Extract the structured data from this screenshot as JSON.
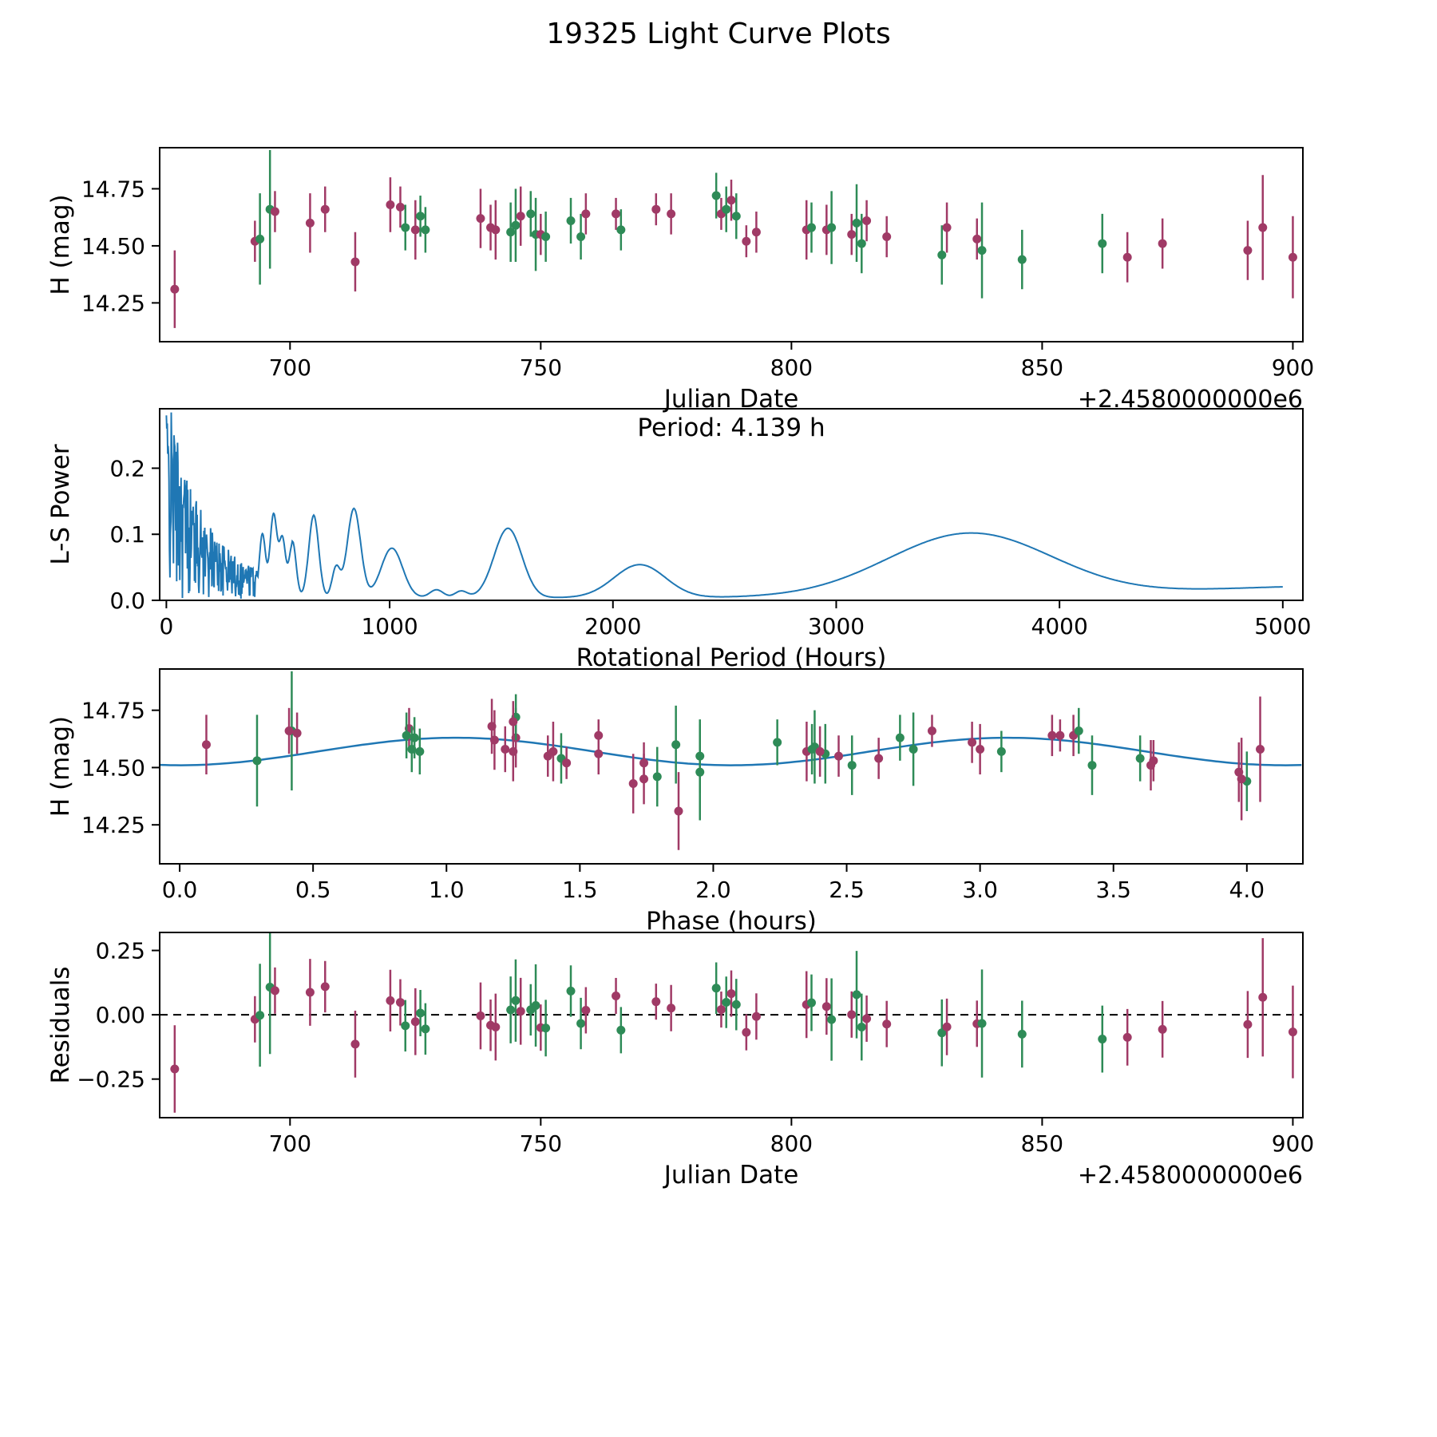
{
  "title": "19325 Light Curve Plots",
  "colors": {
    "line_blue": "#1f77b4",
    "series_purple": "#a03a66",
    "series_green": "#2e8b57",
    "background": "#ffffff",
    "text": "#000000"
  },
  "chart_data": [
    {
      "type": "scatter",
      "name": "light_curve",
      "xlabel": "Julian Date",
      "x_offset_text": "+2.4580000000e6",
      "ylabel": "H (mag)",
      "xlim": [
        674,
        902
      ],
      "ylim": [
        14.08,
        14.93
      ],
      "xticks": [
        700,
        750,
        800,
        850,
        900
      ],
      "xtick_labels": [
        "700",
        "750",
        "800",
        "850",
        "900"
      ],
      "yticks": [
        14.25,
        14.5,
        14.75
      ],
      "ytick_labels": [
        "14.25",
        "14.50",
        "14.75"
      ],
      "grid": false,
      "point_columns": [
        "julian_date_offset",
        "h_mag",
        "h_err",
        "series",
        "phase_hours"
      ],
      "series_colors": {
        "p": "#a03a66",
        "g": "#2e8b57"
      },
      "points": [
        [
          677,
          14.31,
          0.17,
          "p",
          1.87
        ],
        [
          693,
          14.52,
          0.09,
          "p",
          1.74
        ],
        [
          694,
          14.53,
          0.2,
          "g",
          0.29
        ],
        [
          696,
          14.66,
          0.26,
          "g",
          0.42
        ],
        [
          697,
          14.65,
          0.09,
          "p",
          0.44
        ],
        [
          704,
          14.6,
          0.13,
          "p",
          0.1
        ],
        [
          707,
          14.66,
          0.1,
          "p",
          0.41
        ],
        [
          713,
          14.43,
          0.13,
          "p",
          1.7
        ],
        [
          720,
          14.68,
          0.12,
          "p",
          1.17
        ],
        [
          722,
          14.67,
          0.09,
          "p",
          0.86
        ],
        [
          723,
          14.58,
          0.1,
          "g",
          0.87
        ],
        [
          725,
          14.57,
          0.13,
          "p",
          1.4
        ],
        [
          726,
          14.63,
          0.09,
          "g",
          0.88
        ],
        [
          727,
          14.57,
          0.1,
          "g",
          0.9
        ],
        [
          738,
          14.62,
          0.13,
          "p",
          1.18
        ],
        [
          740,
          14.58,
          0.1,
          "p",
          1.22
        ],
        [
          741,
          14.57,
          0.13,
          "p",
          1.25
        ],
        [
          744,
          14.56,
          0.13,
          "g",
          2.42
        ],
        [
          745,
          14.59,
          0.16,
          "g",
          2.38
        ],
        [
          746,
          14.63,
          0.13,
          "p",
          1.26
        ],
        [
          748,
          14.64,
          0.1,
          "g",
          0.85
        ],
        [
          749,
          14.55,
          0.16,
          "g",
          1.95
        ],
        [
          750,
          14.55,
          0.09,
          "p",
          1.38
        ],
        [
          751,
          14.54,
          0.11,
          "g",
          1.43
        ],
        [
          756,
          14.61,
          0.1,
          "g",
          2.24
        ],
        [
          758,
          14.54,
          0.1,
          "g",
          3.6
        ],
        [
          759,
          14.64,
          0.09,
          "p",
          3.27
        ],
        [
          765,
          14.64,
          0.07,
          "p",
          1.57
        ],
        [
          766,
          14.57,
          0.09,
          "g",
          3.08
        ],
        [
          773,
          14.66,
          0.07,
          "p",
          2.82
        ],
        [
          776,
          14.64,
          0.09,
          "p",
          3.35
        ],
        [
          785,
          14.72,
          0.1,
          "g",
          1.26
        ],
        [
          786,
          14.64,
          0.07,
          "p",
          3.3
        ],
        [
          787,
          14.66,
          0.1,
          "g",
          3.37
        ],
        [
          788,
          14.7,
          0.09,
          "p",
          1.25
        ],
        [
          789,
          14.63,
          0.1,
          "g",
          2.7
        ],
        [
          791,
          14.52,
          0.07,
          "p",
          1.45
        ],
        [
          793,
          14.56,
          0.09,
          "p",
          1.57
        ],
        [
          803,
          14.57,
          0.13,
          "p",
          2.35
        ],
        [
          804,
          14.58,
          0.11,
          "g",
          2.37
        ],
        [
          807,
          14.57,
          0.11,
          "p",
          2.4
        ],
        [
          808,
          14.58,
          0.16,
          "g",
          2.75
        ],
        [
          812,
          14.55,
          0.09,
          "p",
          2.47
        ],
        [
          813,
          14.6,
          0.17,
          "g",
          1.86
        ],
        [
          814,
          14.51,
          0.13,
          "g",
          2.52
        ],
        [
          815,
          14.61,
          0.09,
          "p",
          2.97
        ],
        [
          819,
          14.54,
          0.09,
          "p",
          2.62
        ],
        [
          830,
          14.46,
          0.13,
          "g",
          1.79
        ],
        [
          831,
          14.58,
          0.11,
          "p",
          3.0
        ],
        [
          837,
          14.53,
          0.09,
          "p",
          3.65
        ],
        [
          838,
          14.48,
          0.21,
          "g",
          1.95
        ],
        [
          846,
          14.44,
          0.13,
          "g",
          4.0
        ],
        [
          862,
          14.51,
          0.13,
          "g",
          3.42
        ],
        [
          867,
          14.45,
          0.11,
          "p",
          1.74
        ],
        [
          874,
          14.51,
          0.11,
          "p",
          3.64
        ],
        [
          891,
          14.48,
          0.13,
          "p",
          3.97
        ],
        [
          894,
          14.58,
          0.23,
          "p",
          4.05
        ],
        [
          900,
          14.45,
          0.18,
          "p",
          3.98
        ]
      ]
    },
    {
      "type": "line",
      "name": "periodogram",
      "title": "Period: 4.139 h",
      "best_period_hours": 4.139,
      "xlabel": "Rotational Period (Hours)",
      "ylabel": "L-S Power",
      "xlim": [
        -30,
        5090
      ],
      "ylim": [
        0,
        0.29
      ],
      "xticks": [
        0,
        1000,
        2000,
        3000,
        4000,
        5000
      ],
      "xtick_labels": [
        "0",
        "1000",
        "2000",
        "3000",
        "4000",
        "5000"
      ],
      "yticks": [
        0,
        0.1,
        0.2
      ],
      "ytick_labels": [
        "0.0",
        "0.1",
        "0.2"
      ],
      "line_color": "#1f77b4",
      "peaks_columns": [
        "center_hours",
        "sigma_hours",
        "power"
      ],
      "peaks": [
        [
          430,
          14,
          0.1
        ],
        [
          480,
          16,
          0.13
        ],
        [
          520,
          14,
          0.09
        ],
        [
          565,
          16,
          0.085
        ],
        [
          660,
          22,
          0.125
        ],
        [
          760,
          18,
          0.045
        ],
        [
          840,
          30,
          0.135
        ],
        [
          1010,
          48,
          0.075
        ],
        [
          1210,
          30,
          0.012
        ],
        [
          1320,
          28,
          0.01
        ],
        [
          1530,
          62,
          0.105
        ],
        [
          2120,
          115,
          0.05
        ],
        [
          3600,
          370,
          0.097
        ],
        [
          5300,
          700,
          0.018
        ]
      ],
      "noise": {
        "x_max": 560,
        "envelope_start": 0.3,
        "envelope_decay": 150,
        "envelope_floor": 0.03,
        "seed": 42,
        "baseline": 0.004
      }
    },
    {
      "type": "scatter",
      "name": "phase_folded",
      "xlabel": "Phase (hours)",
      "ylabel": "H (mag)",
      "xlim": [
        -0.075,
        4.21
      ],
      "ylim": [
        14.08,
        14.93
      ],
      "xticks": [
        0,
        0.5,
        1,
        1.5,
        2,
        2.5,
        3,
        3.5,
        4
      ],
      "xtick_labels": [
        "0.0",
        "0.5",
        "1.0",
        "1.5",
        "2.0",
        "2.5",
        "3.0",
        "3.5",
        "4.0"
      ],
      "yticks": [
        14.25,
        14.5,
        14.75
      ],
      "ytick_labels": [
        "14.25",
        "14.50",
        "14.75"
      ],
      "fit_curve": {
        "mean_mag": 14.57,
        "amplitude_mag": 0.06,
        "period_hours": 2.0695,
        "color": "#1f77b4"
      },
      "points_source": "light_curve points plotted at phase_hours"
    },
    {
      "type": "scatter",
      "name": "residuals",
      "xlabel": "Julian Date",
      "x_offset_text": "+2.4580000000e6",
      "ylabel": "Residuals",
      "xlim": [
        674,
        902
      ],
      "ylim": [
        -0.4,
        0.32
      ],
      "xticks": [
        700,
        750,
        800,
        850,
        900
      ],
      "xtick_labels": [
        "700",
        "750",
        "800",
        "850",
        "900"
      ],
      "yticks": [
        -0.25,
        0,
        0.25
      ],
      "ytick_labels": [
        "−0.25",
        "0.00",
        "0.25"
      ],
      "zero_line": {
        "style": "dashed",
        "color": "#000000"
      },
      "points_source": "h_mag minus fit_curve model evaluated at phase_hours"
    }
  ]
}
